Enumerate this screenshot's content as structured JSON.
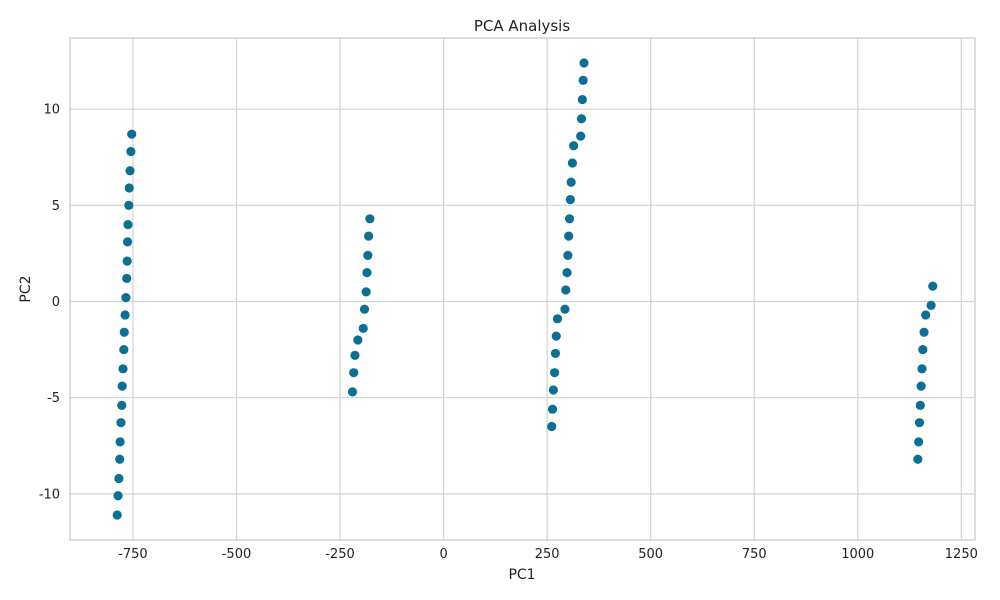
{
  "chart_data": {
    "type": "scatter",
    "title": "PCA Analysis",
    "xlabel": "PC1",
    "ylabel": "PC2",
    "xlim": [
      -902,
      1283
    ],
    "ylim": [
      -12.4,
      13.7
    ],
    "xticks": [
      -750,
      -500,
      -250,
      0,
      250,
      500,
      750,
      1000,
      1250
    ],
    "xtick_labels": [
      "-750",
      "-500",
      "-250",
      "0",
      "250",
      "500",
      "750",
      "1000",
      "1250"
    ],
    "yticks": [
      -10,
      -5,
      0,
      5,
      10
    ],
    "ytick_labels": [
      "-10",
      "-5",
      "0",
      "5",
      "10"
    ],
    "grid": true,
    "marker_color": "#0d6f94",
    "points": [
      {
        "x": -753,
        "y": 8.7
      },
      {
        "x": -755,
        "y": 7.8
      },
      {
        "x": -757,
        "y": 6.8
      },
      {
        "x": -759,
        "y": 5.9
      },
      {
        "x": -760,
        "y": 5.0
      },
      {
        "x": -762,
        "y": 4.0
      },
      {
        "x": -763,
        "y": 3.1
      },
      {
        "x": -764,
        "y": 2.1
      },
      {
        "x": -765,
        "y": 1.2
      },
      {
        "x": -767,
        "y": 0.2
      },
      {
        "x": -769,
        "y": -0.7
      },
      {
        "x": -771,
        "y": -1.6
      },
      {
        "x": -772,
        "y": -2.5
      },
      {
        "x": -774,
        "y": -3.5
      },
      {
        "x": -776,
        "y": -4.4
      },
      {
        "x": -777,
        "y": -5.4
      },
      {
        "x": -779,
        "y": -6.3
      },
      {
        "x": -781,
        "y": -7.3
      },
      {
        "x": -782,
        "y": -8.2
      },
      {
        "x": -784,
        "y": -9.2
      },
      {
        "x": -786,
        "y": -10.1
      },
      {
        "x": -788,
        "y": -11.1
      },
      {
        "x": -178,
        "y": 4.3
      },
      {
        "x": -181,
        "y": 3.4
      },
      {
        "x": -183,
        "y": 2.4
      },
      {
        "x": -185,
        "y": 1.5
      },
      {
        "x": -187,
        "y": 0.5
      },
      {
        "x": -191,
        "y": -0.4
      },
      {
        "x": -194,
        "y": -1.4
      },
      {
        "x": -207,
        "y": -2.0
      },
      {
        "x": -214,
        "y": -2.8
      },
      {
        "x": -217,
        "y": -3.7
      },
      {
        "x": -220,
        "y": -4.7
      },
      {
        "x": 339,
        "y": 12.4
      },
      {
        "x": 337,
        "y": 11.5
      },
      {
        "x": 335,
        "y": 10.5
      },
      {
        "x": 333,
        "y": 9.5
      },
      {
        "x": 331,
        "y": 8.6
      },
      {
        "x": 314,
        "y": 8.1
      },
      {
        "x": 311,
        "y": 7.2
      },
      {
        "x": 308,
        "y": 6.2
      },
      {
        "x": 306,
        "y": 5.3
      },
      {
        "x": 304,
        "y": 4.3
      },
      {
        "x": 302,
        "y": 3.4
      },
      {
        "x": 300,
        "y": 2.4
      },
      {
        "x": 298,
        "y": 1.5
      },
      {
        "x": 295,
        "y": 0.6
      },
      {
        "x": 293,
        "y": -0.4
      },
      {
        "x": 275,
        "y": -0.9
      },
      {
        "x": 272,
        "y": -1.8
      },
      {
        "x": 270,
        "y": -2.7
      },
      {
        "x": 268,
        "y": -3.7
      },
      {
        "x": 265,
        "y": -4.6
      },
      {
        "x": 263,
        "y": -5.6
      },
      {
        "x": 261,
        "y": -6.5
      },
      {
        "x": 1181,
        "y": 0.8
      },
      {
        "x": 1177,
        "y": -0.2
      },
      {
        "x": 1164,
        "y": -0.7
      },
      {
        "x": 1160,
        "y": -1.6
      },
      {
        "x": 1157,
        "y": -2.5
      },
      {
        "x": 1155,
        "y": -3.5
      },
      {
        "x": 1153,
        "y": -4.4
      },
      {
        "x": 1151,
        "y": -5.4
      },
      {
        "x": 1149,
        "y": -6.3
      },
      {
        "x": 1147,
        "y": -7.3
      },
      {
        "x": 1145,
        "y": -8.2
      }
    ]
  }
}
